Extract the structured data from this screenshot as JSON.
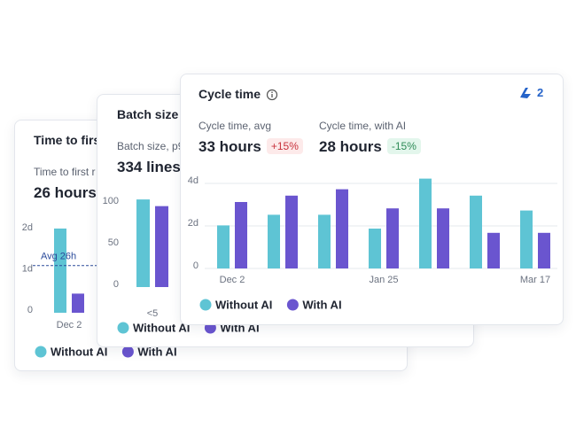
{
  "cards": [
    {
      "title": "Time to first",
      "metrics": [
        {
          "label": "Time to first r",
          "value": "26 hours"
        }
      ],
      "chart": {
        "type": "bar",
        "ylim": [
          0,
          2
        ],
        "yticks": [
          {
            "value": 2,
            "label": "2d"
          },
          {
            "value": 1,
            "label": "1d"
          },
          0
        ],
        "average": {
          "value": 1.08,
          "label": "Avg 26h"
        },
        "categories": [
          "Dec 2"
        ],
        "series": [
          {
            "name": "Without AI",
            "color": "#5ec4d4",
            "values": [
              1.98
            ]
          },
          {
            "name": "With AI",
            "color": "#6a55cf",
            "values": [
              0.4
            ]
          }
        ]
      }
    },
    {
      "title": "Batch size",
      "metrics": [
        {
          "label": "Batch size, p9",
          "value": "334 lines"
        }
      ],
      "chart": {
        "type": "bar",
        "ylim": [
          0,
          100
        ],
        "yticks": [
          100,
          50,
          0
        ],
        "categories": [
          "<5"
        ],
        "series": [
          {
            "name": "Without AI",
            "color": "#5ec4d4",
            "values": [
              102
            ]
          },
          {
            "name": "With AI",
            "color": "#6a55cf",
            "values": [
              94
            ]
          }
        ]
      }
    },
    {
      "title": "Cycle time",
      "badge": "2",
      "metrics": [
        {
          "label": "Cycle time, avg",
          "value": "33 hours",
          "change": {
            "text": "+15%",
            "color": "#c8323c",
            "background": "#fdeaea"
          }
        },
        {
          "label": "Cycle time, with AI",
          "value": "28 hours",
          "change": {
            "text": "-15%",
            "color": "#2e8b57",
            "background": "#e3f6ec"
          }
        }
      ],
      "chart": {
        "type": "bar",
        "ylim": [
          0,
          4
        ],
        "grid": true,
        "yticks": [
          {
            "value": 4,
            "label": "4d"
          },
          {
            "value": 2,
            "label": "2d"
          },
          0
        ],
        "categories": [
          "Dec 2",
          null,
          null,
          "Jan 25",
          null,
          null,
          "Mar 17"
        ],
        "series": [
          {
            "name": "Without AI",
            "color": "#5ec4d4",
            "values": [
              1.9,
              2.4,
              2.4,
              1.75,
              4.1,
              3.3,
              2.6
            ]
          },
          {
            "name": "With AI",
            "color": "#6a55cf",
            "values": [
              3.0,
              3.3,
              3.6,
              2.7,
              2.7,
              1.55,
              1.55
            ]
          }
        ]
      }
    }
  ]
}
